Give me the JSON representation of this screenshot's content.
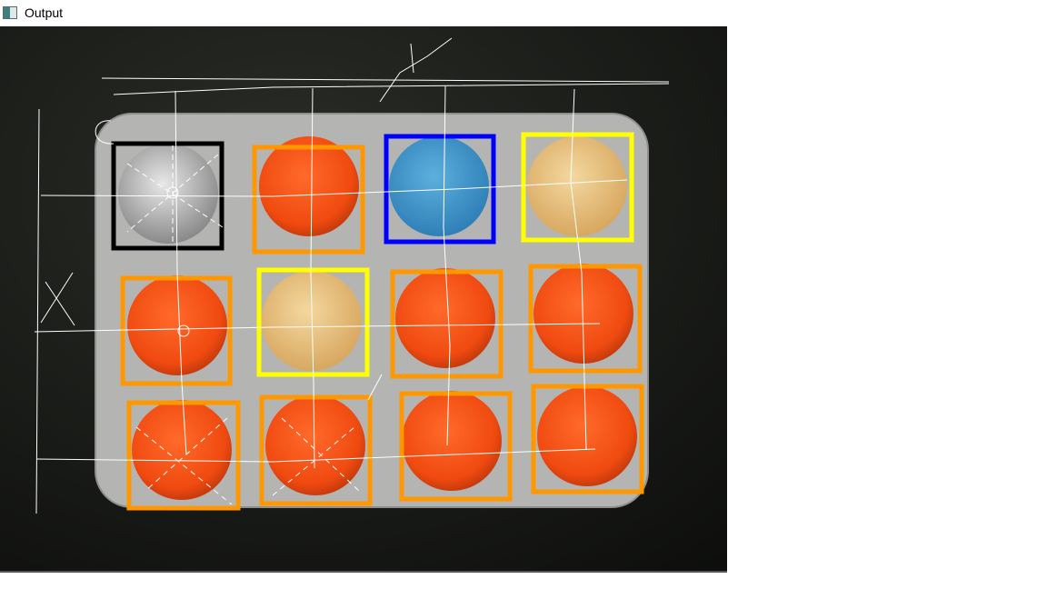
{
  "window": {
    "title": "Output"
  }
}
